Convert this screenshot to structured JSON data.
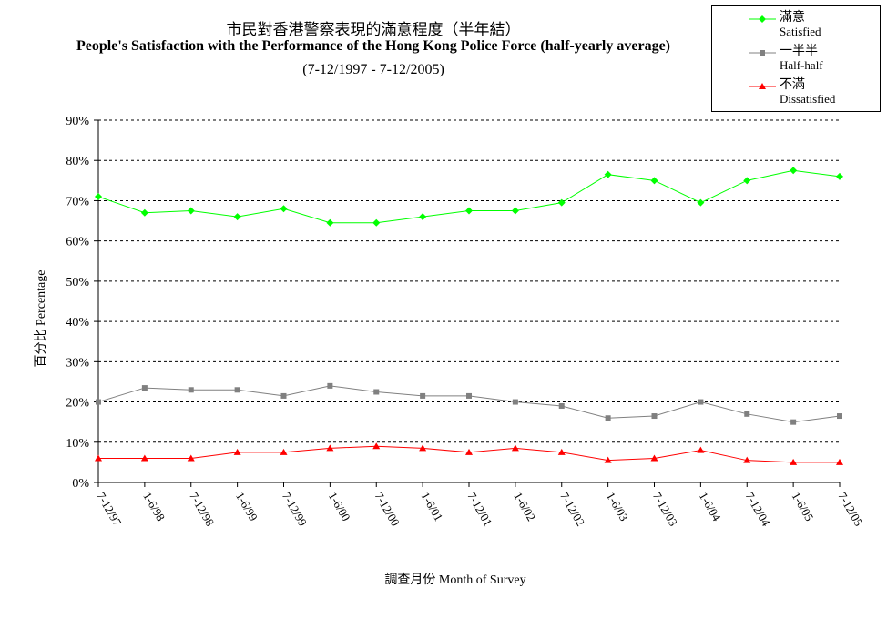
{
  "title_zh": "市民對香港警察表現的滿意程度（半年結）",
  "title_en": "People's Satisfaction with the Performance of the Hong Kong Police Force (half-yearly average)",
  "title_range": "(7-12/1997 - 7-12/2005)",
  "xlabel_zh": "調查月份",
  "xlabel_en": "Month of Survey",
  "ylabel_zh": "百分比",
  "ylabel_en": "Percentage",
  "chart_data": {
    "type": "line",
    "categories": [
      "7-12/97",
      "1-6/98",
      "7-12/98",
      "1-6/99",
      "7-12/99",
      "1-6/00",
      "7-12/00",
      "1-6/01",
      "7-12/01",
      "1-6/02",
      "7-12/02",
      "1-6/03",
      "7-12/03",
      "1-6/04",
      "7-12/04",
      "1-6/05",
      "7-12/05"
    ],
    "ylim": [
      0,
      90
    ],
    "ytick_step": 10,
    "ytick_suffix": "%",
    "grid": true,
    "legend_position": "top-right",
    "series": [
      {
        "name_zh": "滿意",
        "name_en": "Satisfied",
        "color": "#00ff00",
        "marker": "diamond",
        "values": [
          71,
          67,
          67.5,
          66,
          68,
          64.5,
          64.5,
          66,
          67.5,
          67.5,
          69.5,
          76.5,
          75,
          69.5,
          75,
          77.5,
          76
        ]
      },
      {
        "name_zh": "一半半",
        "name_en": "Half-half",
        "color": "#808080",
        "marker": "square",
        "values": [
          20,
          23.5,
          23,
          23,
          21.5,
          24,
          22.5,
          21.5,
          21.5,
          20,
          19,
          16,
          16.5,
          20,
          17,
          15,
          16.5
        ]
      },
      {
        "name_zh": "不滿",
        "name_en": "Dissatisfied",
        "color": "#ff0000",
        "marker": "triangle",
        "values": [
          6,
          6,
          6,
          7.5,
          7.5,
          8.5,
          9,
          8.5,
          7.5,
          8.5,
          7.5,
          5.5,
          6,
          8,
          5.5,
          5,
          5
        ]
      }
    ]
  }
}
